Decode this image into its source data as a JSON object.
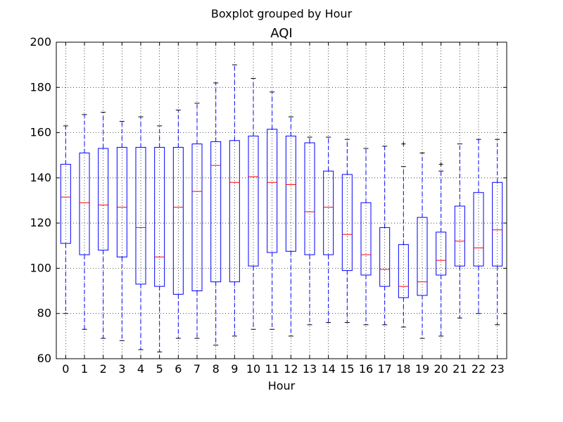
{
  "figure": {
    "suptitle": "Boxplot grouped by Hour"
  },
  "chart_data": {
    "type": "boxplot",
    "title": "AQI",
    "xlabel": "Hour",
    "ylabel": "",
    "ylim": [
      60,
      200
    ],
    "yticks": [
      60,
      80,
      100,
      120,
      140,
      160,
      180,
      200
    ],
    "grid": true,
    "categories": [
      "0",
      "1",
      "2",
      "3",
      "4",
      "5",
      "6",
      "7",
      "8",
      "9",
      "10",
      "11",
      "12",
      "13",
      "14",
      "15",
      "16",
      "17",
      "18",
      "19",
      "20",
      "21",
      "22",
      "23"
    ],
    "boxes": [
      {
        "whislo": 80,
        "q1": 111,
        "med": 131.5,
        "q3": 146,
        "whishi": 163,
        "fliers": []
      },
      {
        "whislo": 73,
        "q1": 106,
        "med": 129,
        "q3": 151,
        "whishi": 168,
        "fliers": []
      },
      {
        "whislo": 69,
        "q1": 108,
        "med": 128,
        "q3": 153,
        "whishi": 169,
        "fliers": []
      },
      {
        "whislo": 68,
        "q1": 105,
        "med": 127,
        "q3": 153.5,
        "whishi": 165,
        "fliers": []
      },
      {
        "whislo": 64,
        "q1": 93,
        "med": 118,
        "q3": 153.5,
        "whishi": 167,
        "fliers": []
      },
      {
        "whislo": 63,
        "q1": 92,
        "med": 105,
        "q3": 153.5,
        "whishi": 163,
        "fliers": []
      },
      {
        "whislo": 69,
        "q1": 88.5,
        "med": 127,
        "q3": 153.5,
        "whishi": 170,
        "fliers": []
      },
      {
        "whislo": 69,
        "q1": 90,
        "med": 134,
        "q3": 155,
        "whishi": 173,
        "fliers": []
      },
      {
        "whislo": 66,
        "q1": 94,
        "med": 145.5,
        "q3": 156,
        "whishi": 182,
        "fliers": []
      },
      {
        "whislo": 70,
        "q1": 94,
        "med": 138,
        "q3": 156.5,
        "whishi": 190,
        "fliers": []
      },
      {
        "whislo": 73,
        "q1": 101,
        "med": 140.5,
        "q3": 158.5,
        "whishi": 184,
        "fliers": []
      },
      {
        "whislo": 73,
        "q1": 107,
        "med": 138,
        "q3": 161.5,
        "whishi": 178,
        "fliers": []
      },
      {
        "whislo": 70,
        "q1": 107.5,
        "med": 137,
        "q3": 158.5,
        "whishi": 167,
        "fliers": []
      },
      {
        "whislo": 75,
        "q1": 106,
        "med": 125,
        "q3": 155.5,
        "whishi": 158,
        "fliers": []
      },
      {
        "whislo": 76,
        "q1": 106,
        "med": 127,
        "q3": 143,
        "whishi": 158,
        "fliers": []
      },
      {
        "whislo": 76,
        "q1": 99,
        "med": 115,
        "q3": 141.5,
        "whishi": 157,
        "fliers": []
      },
      {
        "whislo": 75,
        "q1": 97,
        "med": 106,
        "q3": 129,
        "whishi": 153,
        "fliers": []
      },
      {
        "whislo": 75,
        "q1": 92,
        "med": 99.5,
        "q3": 118,
        "whishi": 154,
        "fliers": []
      },
      {
        "whislo": 74,
        "q1": 87,
        "med": 92,
        "q3": 110.5,
        "whishi": 145,
        "fliers": [
          155
        ]
      },
      {
        "whislo": 69,
        "q1": 88,
        "med": 94,
        "q3": 122.5,
        "whishi": 151,
        "fliers": []
      },
      {
        "whislo": 70,
        "q1": 97,
        "med": 103.5,
        "q3": 116,
        "whishi": 143,
        "fliers": [
          146
        ]
      },
      {
        "whislo": 78,
        "q1": 101,
        "med": 112,
        "q3": 127.5,
        "whishi": 155,
        "fliers": []
      },
      {
        "whislo": 80,
        "q1": 101,
        "med": 109,
        "q3": 133.5,
        "whishi": 157,
        "fliers": []
      },
      {
        "whislo": 75,
        "q1": 101,
        "med": 117,
        "q3": 138,
        "whishi": 157,
        "fliers": []
      }
    ],
    "colors": {
      "box": "#0000ff",
      "median": "#ff0000",
      "caps": "#000000",
      "grid": "#000000",
      "background": "#ffffff"
    }
  }
}
